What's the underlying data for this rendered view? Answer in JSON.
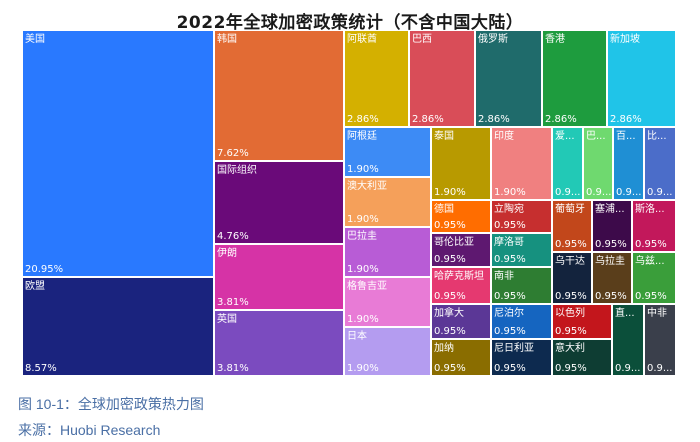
{
  "chart_data": {
    "type": "treemap",
    "title": "2022年全球加密政策统计（不含中国大陆）",
    "items": [
      {
        "label": "美国",
        "value": "20.95%",
        "color": "#2979ff"
      },
      {
        "label": "欧盟",
        "value": "8.57%",
        "color": "#1a237e"
      },
      {
        "label": "韩国",
        "value": "7.62%",
        "color": "#e26b34"
      },
      {
        "label": "国际组织",
        "value": "4.76%",
        "color": "#6a0a79"
      },
      {
        "label": "伊朗",
        "value": "3.81%",
        "color": "#d633a6"
      },
      {
        "label": "英国",
        "value": "3.81%",
        "color": "#7b4bbf"
      },
      {
        "label": "阿联酋",
        "value": "2.86%",
        "color": "#d4b000"
      },
      {
        "label": "巴西",
        "value": "2.86%",
        "color": "#d94d58"
      },
      {
        "label": "俄罗斯",
        "value": "2.86%",
        "color": "#1f6b6b"
      },
      {
        "label": "香港",
        "value": "2.86%",
        "color": "#1e9c3e"
      },
      {
        "label": "新加坡",
        "value": "2.86%",
        "color": "#20c4e8"
      },
      {
        "label": "阿根廷",
        "value": "1.90%",
        "color": "#3d8bf5"
      },
      {
        "label": "澳大利亚",
        "value": "1.90%",
        "color": "#f5a05a"
      },
      {
        "label": "巴拉圭",
        "value": "1.90%",
        "color": "#b85cd6"
      },
      {
        "label": "格鲁吉亚",
        "value": "1.90%",
        "color": "#e87bd6"
      },
      {
        "label": "日本",
        "value": "1.90%",
        "color": "#b49cf0"
      },
      {
        "label": "泰国",
        "value": "1.90%",
        "color": "#b89a00"
      },
      {
        "label": "印度",
        "value": "1.90%",
        "color": "#f08080"
      },
      {
        "label": "爱...",
        "value": "0.9...",
        "color": "#22c9b6"
      },
      {
        "label": "巴...",
        "value": "0.9...",
        "color": "#6fd96f"
      },
      {
        "label": "百...",
        "value": "0.9...",
        "color": "#1f8fd4"
      },
      {
        "label": "比...",
        "value": "0.9...",
        "color": "#4b6dc9"
      },
      {
        "label": "德国",
        "value": "0.95%",
        "color": "#ff6d00"
      },
      {
        "label": "立陶宛",
        "value": "0.95%",
        "color": "#c62f2f"
      },
      {
        "label": "葡萄牙",
        "value": "0.95%",
        "color": "#c2471b"
      },
      {
        "label": "塞浦...",
        "value": "0.95%",
        "color": "#3d0a4a"
      },
      {
        "label": "斯洛...",
        "value": "0.95%",
        "color": "#c2185b"
      },
      {
        "label": "哥伦比亚",
        "value": "0.95%",
        "color": "#5e1870"
      },
      {
        "label": "摩洛哥",
        "value": "0.95%",
        "color": "#16917f"
      },
      {
        "label": "哈萨克斯坦",
        "value": "0.95%",
        "color": "#e53970"
      },
      {
        "label": "南非",
        "value": "0.95%",
        "color": "#2e7d32"
      },
      {
        "label": "乌干达",
        "value": "0.95%",
        "color": "#13233d"
      },
      {
        "label": "乌拉圭",
        "value": "0.95%",
        "color": "#5a3e1b"
      },
      {
        "label": "乌兹...",
        "value": "0.95%",
        "color": "#3a9e3a"
      },
      {
        "label": "加拿大",
        "value": "0.95%",
        "color": "#5b3796"
      },
      {
        "label": "尼泊尔",
        "value": "0.95%",
        "color": "#1565c0"
      },
      {
        "label": "以色列",
        "value": "0.95%",
        "color": "#c3161c"
      },
      {
        "label": "直...",
        "value": "0.9...",
        "color": "#0b4f3a"
      },
      {
        "label": "中非",
        "value": "0.9...",
        "color": "#3a3f4b"
      },
      {
        "label": "加纳",
        "value": "0.95%",
        "color": "#8a6d00"
      },
      {
        "label": "尼日利亚",
        "value": "0.95%",
        "color": "#0d2a4f"
      },
      {
        "label": "意大利",
        "value": "0.95%",
        "color": "#0e3d33"
      }
    ]
  },
  "caption": "图 10-1：全球加密政策热力图",
  "source": "来源：Huobi Research"
}
